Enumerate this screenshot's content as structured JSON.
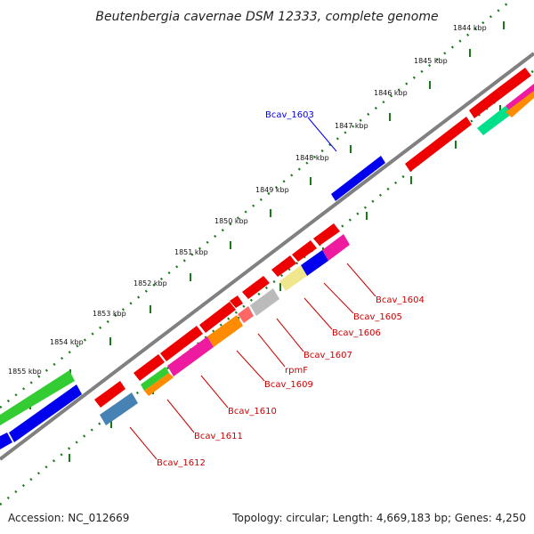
{
  "title": "Beutenbergia cavernae DSM 12333, complete genome",
  "scale_ticks": [
    "1844 kbp",
    "1845 kbp",
    "1846 kbp",
    "1847 kbp",
    "1848 kbp",
    "1849 kbp",
    "1850 kbp",
    "1851 kbp",
    "1852 kbp",
    "1853 kbp",
    "1854 kbp",
    "1855 kbp"
  ],
  "gene_labels": [
    {
      "text": "Bcav_1603",
      "color": "#0000ee"
    },
    {
      "text": "Bcav_1604",
      "color": "#cc0000"
    },
    {
      "text": "Bcav_1605",
      "color": "#cc0000"
    },
    {
      "text": "Bcav_1606",
      "color": "#cc0000"
    },
    {
      "text": "Bcav_1607",
      "color": "#cc0000"
    },
    {
      "text": "rpmF",
      "color": "#cc0000"
    },
    {
      "text": "Bcav_1609",
      "color": "#cc0000"
    },
    {
      "text": "Bcav_1610",
      "color": "#cc0000"
    },
    {
      "text": "Bcav_1611",
      "color": "#cc0000"
    },
    {
      "text": "Bcav_1612",
      "color": "#cc0000"
    }
  ],
  "footer": {
    "accession": "Accession: NC_012669",
    "summary": "Topology: circular; Length: 4,669,183 bp; Genes: 4,250"
  },
  "colors": {
    "backbone": "#808080",
    "tick_dots": "#1a7a1a",
    "red": "#ee0000",
    "blue": "#0000ee",
    "green": "#33cc33",
    "pink": "#ee1aa0",
    "orange": "#ff8c00",
    "grey": "#bbbbbb",
    "yellow": "#f0e68c",
    "steelblue": "#4682b4",
    "teal": "#00e08a"
  }
}
